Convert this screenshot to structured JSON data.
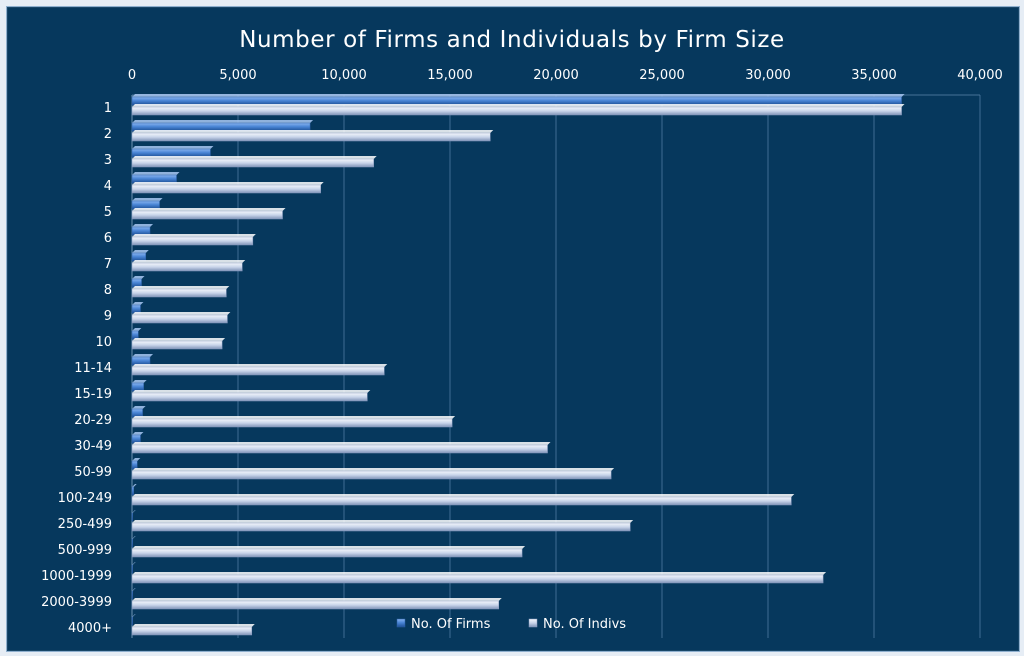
{
  "chart_data": {
    "type": "bar",
    "orientation": "horizontal",
    "title": "Number of Firms and Individuals by Firm Size",
    "xlabel": "",
    "ylabel": "",
    "xlim": [
      0,
      40000
    ],
    "x_ticks": [
      "0",
      "5,000",
      "10,000",
      "15,000",
      "20,000",
      "25,000",
      "30,000",
      "35,000",
      "40,000"
    ],
    "tick_values": [
      0,
      5000,
      10000,
      15000,
      20000,
      25000,
      30000,
      35000,
      40000
    ],
    "grid": true,
    "legend_position": "bottom",
    "categories": [
      "1",
      "2",
      "3",
      "4",
      "5",
      "6",
      "7",
      "8",
      "9",
      "10",
      "11-14",
      "15-19",
      "20-29",
      "30-49",
      "50-99",
      "100-249",
      "250-499",
      "500-999",
      "1000-1999",
      "2000-3999",
      "4000+"
    ],
    "series": [
      {
        "name": "No. Of Firms",
        "color": "#4a86d6",
        "values": [
          36300,
          8400,
          3700,
          2100,
          1300,
          850,
          650,
          450,
          400,
          300,
          850,
          550,
          500,
          400,
          250,
          80,
          25,
          8,
          5,
          2,
          1
        ]
      },
      {
        "name": "No. Of Indivs",
        "color": "#c9d5ea",
        "values": [
          36300,
          16900,
          11400,
          8900,
          7100,
          5700,
          5200,
          4450,
          4500,
          4250,
          11900,
          11100,
          15100,
          19600,
          22600,
          31100,
          23500,
          18400,
          32600,
          17300,
          5650
        ]
      }
    ]
  }
}
